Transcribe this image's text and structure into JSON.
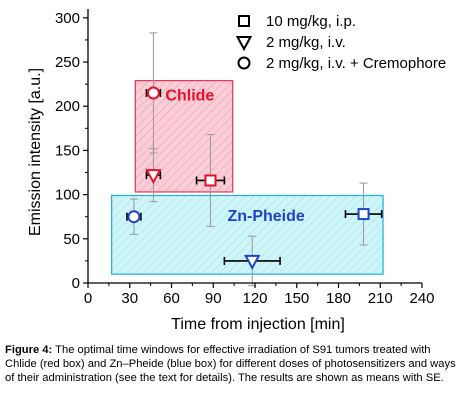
{
  "chart_data": {
    "type": "scatter",
    "xlabel": "Time from injection [min]",
    "ylabel": "Emission intensity [a.u.]",
    "xlim": [
      0,
      240
    ],
    "ylim": [
      0,
      310
    ],
    "xticks": [
      "0",
      "30",
      "60",
      "90",
      "120",
      "150",
      "180",
      "210",
      "240"
    ],
    "yticks": [
      "0",
      "50",
      "100",
      "150",
      "200",
      "250",
      "300"
    ],
    "grid": false,
    "legend_position": "top-right",
    "series": [
      {
        "name": "10 mg/kg, i.p.",
        "marker": "square",
        "points": [
          {
            "x": 88,
            "y": 116,
            "xerr": 10,
            "yerr": 52
          },
          {
            "x": 198,
            "y": 78,
            "xerr": 13,
            "yerr": 35
          }
        ]
      },
      {
        "name": "2 mg/kg, i.v.",
        "marker": "triangle-down",
        "points": [
          {
            "x": 47,
            "y": 122,
            "xerr": 5,
            "yerr": 30
          },
          {
            "x": 118,
            "y": 25,
            "xerr": 20,
            "yerr": 28
          }
        ]
      },
      {
        "name": "2 mg/kg, i.v. + Cremophore",
        "marker": "circle",
        "points": [
          {
            "x": 47,
            "y": 215,
            "xerr": 5,
            "yerr": 68
          },
          {
            "x": 33,
            "y": 75,
            "xerr": 5,
            "yerr": 20
          }
        ]
      }
    ],
    "regions": [
      {
        "label": "Chlide",
        "x": [
          34,
          104
        ],
        "y": [
          103,
          229
        ],
        "color": "#e8325a",
        "fill": "#f9c6d0"
      },
      {
        "label": "Zn-Pheide",
        "x": [
          17,
          212
        ],
        "y": [
          10,
          99
        ],
        "color": "#1ab0d8",
        "fill": "#c3f1f6"
      }
    ],
    "colors": {
      "red": "#e8102a",
      "blue": "#1e44c8"
    }
  },
  "caption": {
    "label": "Figure 4:",
    "text": " The optimal time windows for effective irradiation of S91 tumors treated with Chlide (red box) and Zn–Pheide (blue box) for different doses of photosensitizers and ways of their administration (see the text for details). The results are shown as means with SE."
  }
}
